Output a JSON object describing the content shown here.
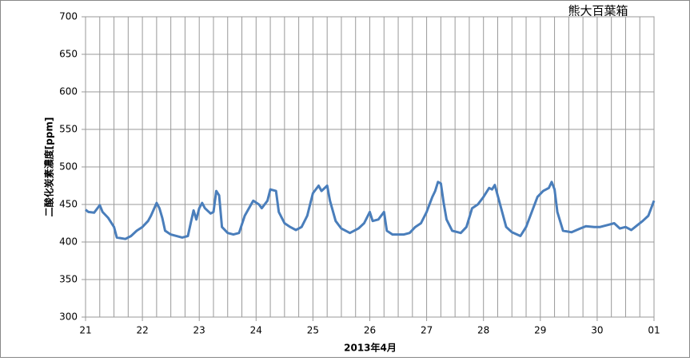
{
  "chart_data": {
    "type": "line",
    "title": "熊大百葉箱",
    "x_label": "2013年4月",
    "y_label": "二酸化炭素濃度[ppm]",
    "xlim": [
      21,
      31
    ],
    "xticks": [
      21,
      22,
      23,
      24,
      25,
      26,
      27,
      28,
      29,
      30,
      {
        "value": 31,
        "label": "01"
      }
    ],
    "minor_grid_per_tick": 4,
    "ylim": [
      300,
      700
    ],
    "yticks": [
      300,
      350,
      400,
      450,
      500,
      550,
      600,
      650,
      700
    ],
    "grid": true,
    "series": [
      {
        "name": "二酸化炭素濃度",
        "color": "#4a7ebb",
        "x": [
          21.0,
          21.05,
          21.15,
          21.25,
          21.3,
          21.4,
          21.5,
          21.55,
          21.7,
          21.8,
          21.9,
          22.0,
          22.1,
          22.15,
          22.25,
          22.3,
          22.35,
          22.4,
          22.5,
          22.7,
          22.8,
          22.85,
          22.9,
          22.95,
          23.0,
          23.05,
          23.1,
          23.2,
          23.25,
          23.3,
          23.35,
          23.4,
          23.5,
          23.6,
          23.7,
          23.8,
          23.95,
          24.05,
          24.1,
          24.2,
          24.25,
          24.35,
          24.4,
          24.5,
          24.6,
          24.7,
          24.8,
          24.9,
          24.95,
          25.0,
          25.1,
          25.15,
          25.25,
          25.3,
          25.4,
          25.5,
          25.65,
          25.8,
          25.9,
          26.0,
          26.05,
          26.15,
          26.25,
          26.3,
          26.4,
          26.6,
          26.7,
          26.8,
          26.9,
          27.0,
          27.1,
          27.15,
          27.2,
          27.25,
          27.3,
          27.35,
          27.45,
          27.6,
          27.7,
          27.8,
          27.9,
          28.0,
          28.1,
          28.15,
          28.2,
          28.3,
          28.4,
          28.5,
          28.65,
          28.75,
          28.85,
          28.95,
          29.05,
          29.15,
          29.2,
          29.25,
          29.3,
          29.4,
          29.55,
          29.7,
          29.8,
          29.95,
          30.05,
          30.2,
          30.3,
          30.4,
          30.5,
          30.6,
          30.7,
          30.8,
          30.9,
          31.0
        ],
        "values": [
          443,
          440,
          439,
          449,
          440,
          432,
          420,
          406,
          404,
          408,
          415,
          420,
          428,
          435,
          452,
          445,
          432,
          415,
          410,
          406,
          408,
          425,
          442,
          430,
          445,
          452,
          445,
          438,
          440,
          468,
          462,
          420,
          412,
          410,
          412,
          435,
          455,
          450,
          445,
          455,
          470,
          468,
          440,
          425,
          420,
          416,
          420,
          435,
          450,
          465,
          475,
          468,
          475,
          455,
          428,
          418,
          412,
          418,
          425,
          440,
          428,
          430,
          440,
          415,
          410,
          410,
          412,
          420,
          425,
          440,
          460,
          468,
          480,
          478,
          452,
          430,
          415,
          412,
          420,
          445,
          450,
          460,
          472,
          470,
          476,
          448,
          420,
          413,
          408,
          420,
          440,
          460,
          468,
          472,
          480,
          470,
          440,
          415,
          413,
          418,
          421,
          420,
          420,
          423,
          425,
          418,
          420,
          416,
          422,
          428,
          435,
          455
        ]
      }
    ]
  }
}
